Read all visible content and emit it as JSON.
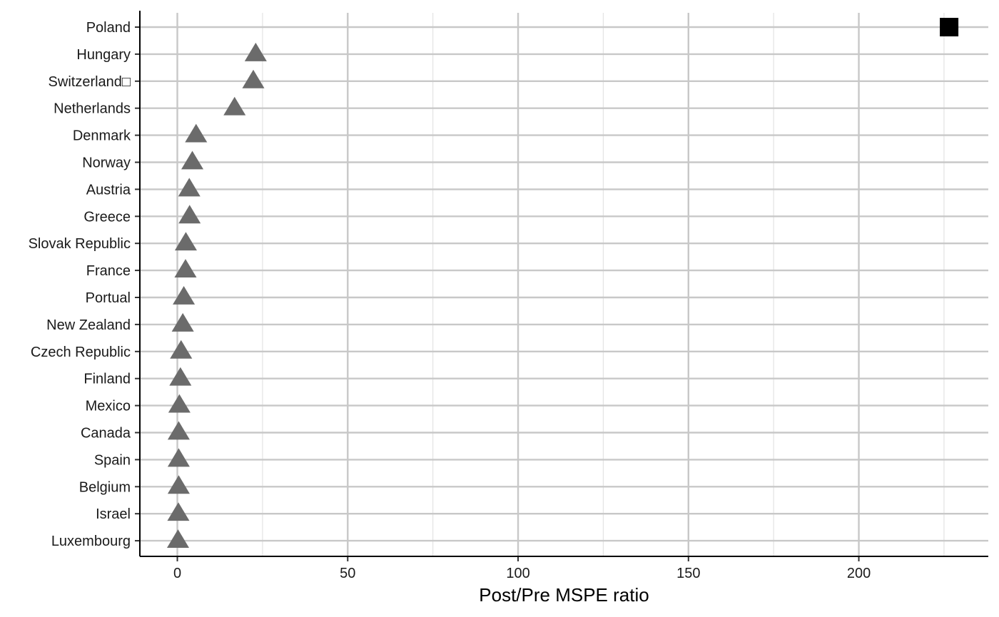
{
  "chart_data": {
    "type": "scatter",
    "title": "",
    "xlabel": "Post/Pre MSPE ratio",
    "ylabel": "",
    "xlim": [
      -11,
      238
    ],
    "xticks": [
      0,
      50,
      100,
      150,
      200
    ],
    "x_minor_ticks": [
      25,
      75,
      125,
      175,
      225
    ],
    "grid": true,
    "legend": "none",
    "categories": [
      "Poland",
      "Hungary",
      "Switzerland□",
      "Netherlands",
      "Denmark",
      "Norway",
      "Austria",
      "Greece",
      "Slovak Republic",
      "France",
      "Portual ",
      "New Zealand",
      "Czech Republic",
      "Finland ",
      "Mexico",
      "Canada",
      "Spain",
      "Belgium",
      "Israel",
      "Luxembourg"
    ],
    "series": [
      {
        "marker": "square",
        "color": "#000000",
        "points": [
          {
            "category": "Poland",
            "x": 226.5
          }
        ]
      },
      {
        "marker": "triangle",
        "color": "#6b6b6b",
        "points": [
          {
            "category": "Hungary",
            "x": 23.0
          },
          {
            "category": "Switzerland□",
            "x": 22.3
          },
          {
            "category": "Netherlands",
            "x": 16.8
          },
          {
            "category": "Denmark",
            "x": 5.5
          },
          {
            "category": "Norway",
            "x": 4.4
          },
          {
            "category": "Austria",
            "x": 3.5
          },
          {
            "category": "Greece",
            "x": 3.6
          },
          {
            "category": "Slovak Republic",
            "x": 2.5
          },
          {
            "category": "France",
            "x": 2.4
          },
          {
            "category": "Portual ",
            "x": 1.9
          },
          {
            "category": "New Zealand",
            "x": 1.6
          },
          {
            "category": "Czech Republic",
            "x": 1.1
          },
          {
            "category": "Finland ",
            "x": 0.9
          },
          {
            "category": "Mexico",
            "x": 0.6
          },
          {
            "category": "Canada",
            "x": 0.4
          },
          {
            "category": "Spain",
            "x": 0.4
          },
          {
            "category": "Belgium",
            "x": 0.4
          },
          {
            "category": "Israel",
            "x": 0.3
          },
          {
            "category": "Luxembourg",
            "x": 0.2
          }
        ]
      }
    ],
    "colors": {
      "major_grid": "#c8c8c8",
      "minor_grid": "#e3e3e3",
      "axis": "#000000"
    }
  }
}
